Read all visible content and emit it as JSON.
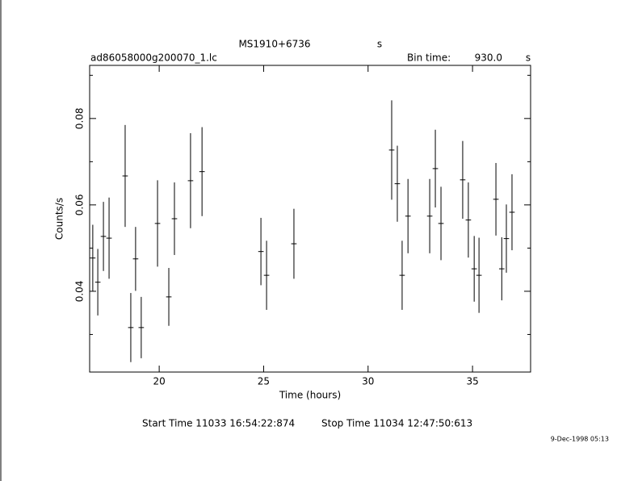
{
  "chart_data": {
    "type": "errorbar",
    "title": "MS1910+6736",
    "title_unit": "s",
    "subtitle": "ad86058000g200070_1.lc",
    "bin_time_text": "Bin time:",
    "bin_time": {
      "value": 930.0,
      "label": "930.0"
    },
    "bin_time_unit": "s",
    "xlabel": "Time (hours)",
    "ylabel": "Counts/s",
    "x": [
      16.82,
      17.06,
      17.33,
      17.6,
      18.37,
      18.64,
      18.87,
      19.14,
      19.92,
      20.46,
      20.73,
      21.5,
      22.05,
      24.87,
      25.14,
      26.45,
      31.13,
      31.4,
      31.63,
      31.91,
      32.95,
      33.22,
      33.49,
      34.53,
      34.8,
      35.08,
      35.31,
      36.12,
      36.4,
      36.62,
      36.89
    ],
    "values": [
      0.0477,
      0.0421,
      0.0527,
      0.0523,
      0.0667,
      0.0316,
      0.0475,
      0.0316,
      0.0557,
      0.0387,
      0.0568,
      0.0656,
      0.0677,
      0.0492,
      0.0437,
      0.051,
      0.0727,
      0.0649,
      0.0437,
      0.0574,
      0.0574,
      0.0684,
      0.0557,
      0.0658,
      0.0565,
      0.0452,
      0.0437,
      0.0613,
      0.0452,
      0.0522,
      0.0583
    ],
    "errors": [
      0.0077,
      0.0077,
      0.008,
      0.0094,
      0.0118,
      0.008,
      0.0074,
      0.0071,
      0.01,
      0.0067,
      0.0084,
      0.011,
      0.0103,
      0.0078,
      0.008,
      0.0081,
      0.0115,
      0.0088,
      0.008,
      0.0086,
      0.0086,
      0.009,
      0.0085,
      0.009,
      0.0087,
      0.0076,
      0.0087,
      0.0084,
      0.0073,
      0.0079,
      0.0088
    ],
    "xlim": [
      16.67,
      37.78
    ],
    "ylim": [
      0.0213,
      0.0923
    ],
    "xticks": [
      20,
      25,
      30,
      35
    ],
    "yticks": [
      0.04,
      0.06,
      0.08
    ],
    "yminorticks": [
      0.03,
      0.05,
      0.07,
      0.09
    ],
    "color": "#000000",
    "start_time": "Start Time 11033 16:54:22:874",
    "stop_time": "Stop Time 11034 12:47:50:613",
    "date": "9-Dec-1998 05:13"
  }
}
